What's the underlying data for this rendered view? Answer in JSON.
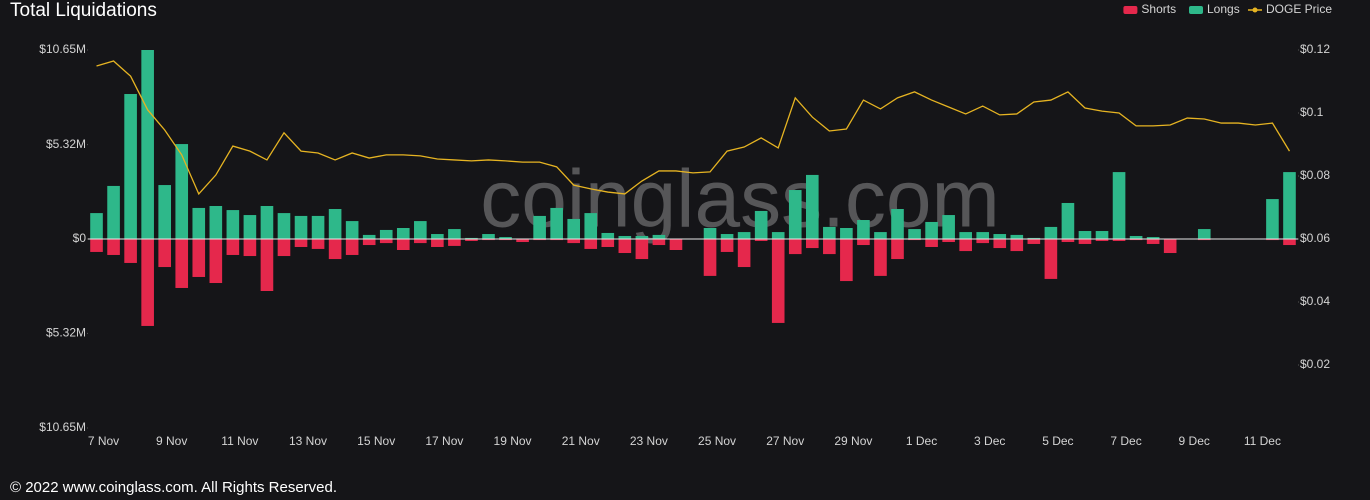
{
  "chart_data": {
    "type": "bar",
    "title": "Total Liquidations",
    "watermark": "coinglass.com",
    "footer": "© 2022 www.coinglass.com. All Rights Reserved.",
    "legend": "top-right",
    "categories": [
      "7 Nov",
      null,
      null,
      null,
      "9 Nov",
      null,
      null,
      null,
      "11 Nov",
      null,
      null,
      null,
      "13 Nov",
      null,
      null,
      null,
      "15 Nov",
      null,
      null,
      null,
      "17 Nov",
      null,
      null,
      null,
      "19 Nov",
      null,
      null,
      null,
      "21 Nov",
      null,
      null,
      null,
      "23 Nov",
      null,
      null,
      null,
      "25 Nov",
      null,
      null,
      null,
      "27 Nov",
      null,
      null,
      null,
      "29 Nov",
      null,
      null,
      null,
      "1 Dec",
      null,
      null,
      null,
      "3 Dec",
      null,
      null,
      null,
      "5 Dec",
      null,
      null,
      null,
      "7 Dec",
      null,
      null,
      null,
      "9 Dec",
      null,
      null,
      null,
      "11 Dec",
      null,
      null
    ],
    "series": [
      {
        "name": "Shorts",
        "color": "#e5284c",
        "values": [
          -0.73,
          -0.9,
          -1.35,
          -4.9,
          -1.58,
          -2.76,
          -2.14,
          -2.48,
          -0.9,
          -0.96,
          -2.93,
          -0.96,
          -0.45,
          -0.56,
          -1.13,
          -0.9,
          -0.34,
          -0.23,
          -0.62,
          -0.23,
          -0.45,
          -0.39,
          -0.11,
          -0.06,
          -0.06,
          -0.17,
          -0.06,
          -0.06,
          -0.23,
          -0.56,
          -0.45,
          -0.79,
          -1.13,
          -0.34,
          -0.62,
          -0.02,
          -2.08,
          -0.73,
          -1.58,
          -0.11,
          -4.73,
          -0.85,
          -0.51,
          -0.85,
          -2.37,
          -0.34,
          -2.08,
          -1.13,
          -0.06,
          -0.45,
          -0.17,
          -0.68,
          -0.23,
          -0.51,
          -0.68,
          -0.28,
          -2.25,
          -0.17,
          -0.28,
          -0.11,
          -0.11,
          -0.06,
          -0.28,
          -0.79,
          0,
          -0.06,
          0,
          -0.03,
          0,
          -0.06,
          -0.34
        ]
      },
      {
        "name": "Longs",
        "color": "#2eb88a",
        "values": [
          1.46,
          2.99,
          8.17,
          10.65,
          3.04,
          5.35,
          1.75,
          1.86,
          1.63,
          1.35,
          1.86,
          1.46,
          1.3,
          1.3,
          1.69,
          1.01,
          0.23,
          0.51,
          0.62,
          1.01,
          0.28,
          0.56,
          0.06,
          0.28,
          0.11,
          0.03,
          1.3,
          1.75,
          1.13,
          1.46,
          0.34,
          0.17,
          0.17,
          0.23,
          0,
          0.02,
          0.62,
          0.28,
          0.39,
          1.58,
          0.39,
          2.76,
          3.61,
          0.68,
          0.62,
          1.07,
          0.39,
          1.69,
          0.56,
          0.96,
          1.35,
          0.39,
          0.39,
          0.28,
          0.23,
          0.06,
          0.68,
          2.03,
          0.45,
          0.45,
          3.77,
          0.17,
          0.11,
          0,
          0,
          0.56,
          0,
          0,
          0,
          2.25,
          3.77
        ]
      },
      {
        "name": "DOGE Price",
        "color": "#e6b422",
        "type": "line",
        "axis": "y2",
        "values": [
          0.1149,
          0.1165,
          0.1117,
          0.101,
          0.0946,
          0.0867,
          0.0743,
          0.0803,
          0.0895,
          0.0879,
          0.0851,
          0.0937,
          0.0879,
          0.0873,
          0.0851,
          0.0873,
          0.0857,
          0.0867,
          0.0867,
          0.0864,
          0.0854,
          0.0851,
          0.0848,
          0.0851,
          0.0848,
          0.0844,
          0.0844,
          0.0829,
          0.0771,
          0.0759,
          0.0749,
          0.0743,
          0.0784,
          0.0816,
          0.0816,
          0.081,
          0.0813,
          0.0879,
          0.0892,
          0.0921,
          0.0889,
          0.1048,
          0.0987,
          0.0943,
          0.0949,
          0.1041,
          0.1013,
          0.1048,
          0.1067,
          0.1041,
          0.1019,
          0.0997,
          0.1022,
          0.0994,
          0.0997,
          0.1035,
          0.1041,
          0.1067,
          0.1016,
          0.1006,
          0.1,
          0.0959,
          0.0959,
          0.0962,
          0.0984,
          0.0981,
          0.0968,
          0.0968,
          0.0962,
          0.0968,
          0.0879
        ]
      }
    ],
    "ylim": [
      -10.65,
      10.65
    ],
    "yticks": [
      {
        "value": 10.65,
        "label": "$10.65M"
      },
      {
        "value": 5.32,
        "label": "$5.32M"
      },
      {
        "value": 0,
        "label": "$0"
      },
      {
        "value": -5.32,
        "label": "$5.32M"
      },
      {
        "value": -10.65,
        "label": "$10.65M"
      }
    ],
    "y2lim": [
      0,
      0.12
    ],
    "y2ticks": [
      {
        "value": 0.12,
        "label": "$0.12"
      },
      {
        "value": 0.1,
        "label": "$0.1"
      },
      {
        "value": 0.08,
        "label": "$0.08"
      },
      {
        "value": 0.06,
        "label": "$0.06"
      },
      {
        "value": 0.04,
        "label": "$0.04"
      },
      {
        "value": 0.02,
        "label": "$0.02"
      }
    ]
  }
}
